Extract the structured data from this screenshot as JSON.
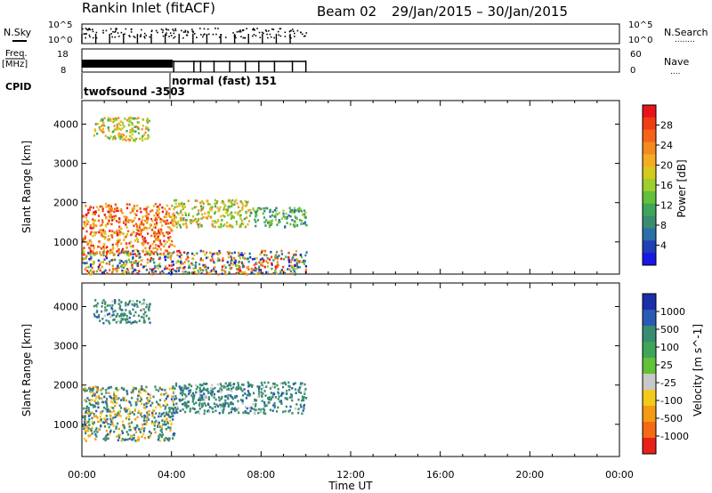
{
  "header": {
    "station": "Rankin Inlet (fitACF)",
    "beam": "Beam 02",
    "date_range": "29/Jan/2015 – 30/Jan/2015"
  },
  "summary": {
    "nsky_label": "N.Sky",
    "nsky_ticks": [
      "10^5",
      "10^0"
    ],
    "nsearch_label": "N.Search",
    "nsearch_dots": "........",
    "freq_label": "Freq.",
    "freq_unit": "[MHz]",
    "freq_ticks": [
      "18",
      "8"
    ],
    "nave_ticks": [
      "60",
      "0"
    ],
    "nave_label": "Nave",
    "nave_dots": "....",
    "cpid_label": "CPID",
    "cpid_mode_1": "twofsound -3503",
    "cpid_mode_2": "normal (fast) 151"
  },
  "chart_data": [
    {
      "type": "heatmap",
      "title": "Power",
      "ylabel": "Slant Range [km]",
      "xlabel": "",
      "xlim_hours": [
        0,
        24
      ],
      "ylim_km": [
        180,
        4600
      ],
      "y_ticks": [
        "1000",
        "2000",
        "3000",
        "4000"
      ],
      "colorbar": {
        "label": "Power [dB]",
        "ticks": [
          "28",
          "24",
          "20",
          "16",
          "12",
          "8",
          "4"
        ],
        "colors": [
          "#e8141c",
          "#f03c14",
          "#f5641a",
          "#f58a1e",
          "#f5ac22",
          "#d6c81c",
          "#9ecf2c",
          "#62c03a",
          "#3fa55a",
          "#3a8c70",
          "#2a6fa8",
          "#1f3fb5",
          "#1818e6"
        ]
      },
      "scatter_regions": [
        {
          "t": [
            0.0,
            4.1
          ],
          "r": [
            700,
            2000
          ],
          "level": "high"
        },
        {
          "t": [
            4.0,
            7.5
          ],
          "r": [
            1400,
            2100
          ],
          "level": "mid"
        },
        {
          "t": [
            7.5,
            10.0
          ],
          "r": [
            1400,
            1900
          ],
          "level": "mid-low"
        },
        {
          "t": [
            0.5,
            3.0
          ],
          "r": [
            3600,
            4200
          ],
          "level": "mid"
        },
        {
          "t": [
            0.0,
            10.0
          ],
          "r": [
            200,
            800
          ],
          "level": "mixed"
        }
      ]
    },
    {
      "type": "heatmap",
      "title": "Velocity",
      "ylabel": "Slant Range [km]",
      "xlabel": "Time UT",
      "x_ticks": [
        "00:00",
        "04:00",
        "08:00",
        "12:00",
        "16:00",
        "20:00",
        "00:00"
      ],
      "xlim_hours": [
        0,
        24
      ],
      "ylim_km": [
        180,
        4600
      ],
      "y_ticks": [
        "1000",
        "2000",
        "3000",
        "4000"
      ],
      "colorbar": {
        "label": "Velocity [m s^-1]",
        "ticks": [
          "1000",
          "500",
          "100",
          "25",
          "-25",
          "-100",
          "-500",
          "-1000"
        ],
        "colors": [
          "#1a2fa8",
          "#2a5ab4",
          "#3a8c70",
          "#3fa55a",
          "#62c03a",
          "#c8c8c8",
          "#f5c81e",
          "#f59a14",
          "#f56a14",
          "#e82018"
        ]
      },
      "scatter_regions": [
        {
          "t": [
            0.0,
            4.1
          ],
          "r": [
            600,
            2000
          ],
          "level": "mixed"
        },
        {
          "t": [
            4.0,
            10.0
          ],
          "r": [
            1300,
            2100
          ],
          "level": "green"
        },
        {
          "t": [
            0.5,
            3.0
          ],
          "r": [
            3600,
            4200
          ],
          "level": "green"
        }
      ]
    }
  ]
}
